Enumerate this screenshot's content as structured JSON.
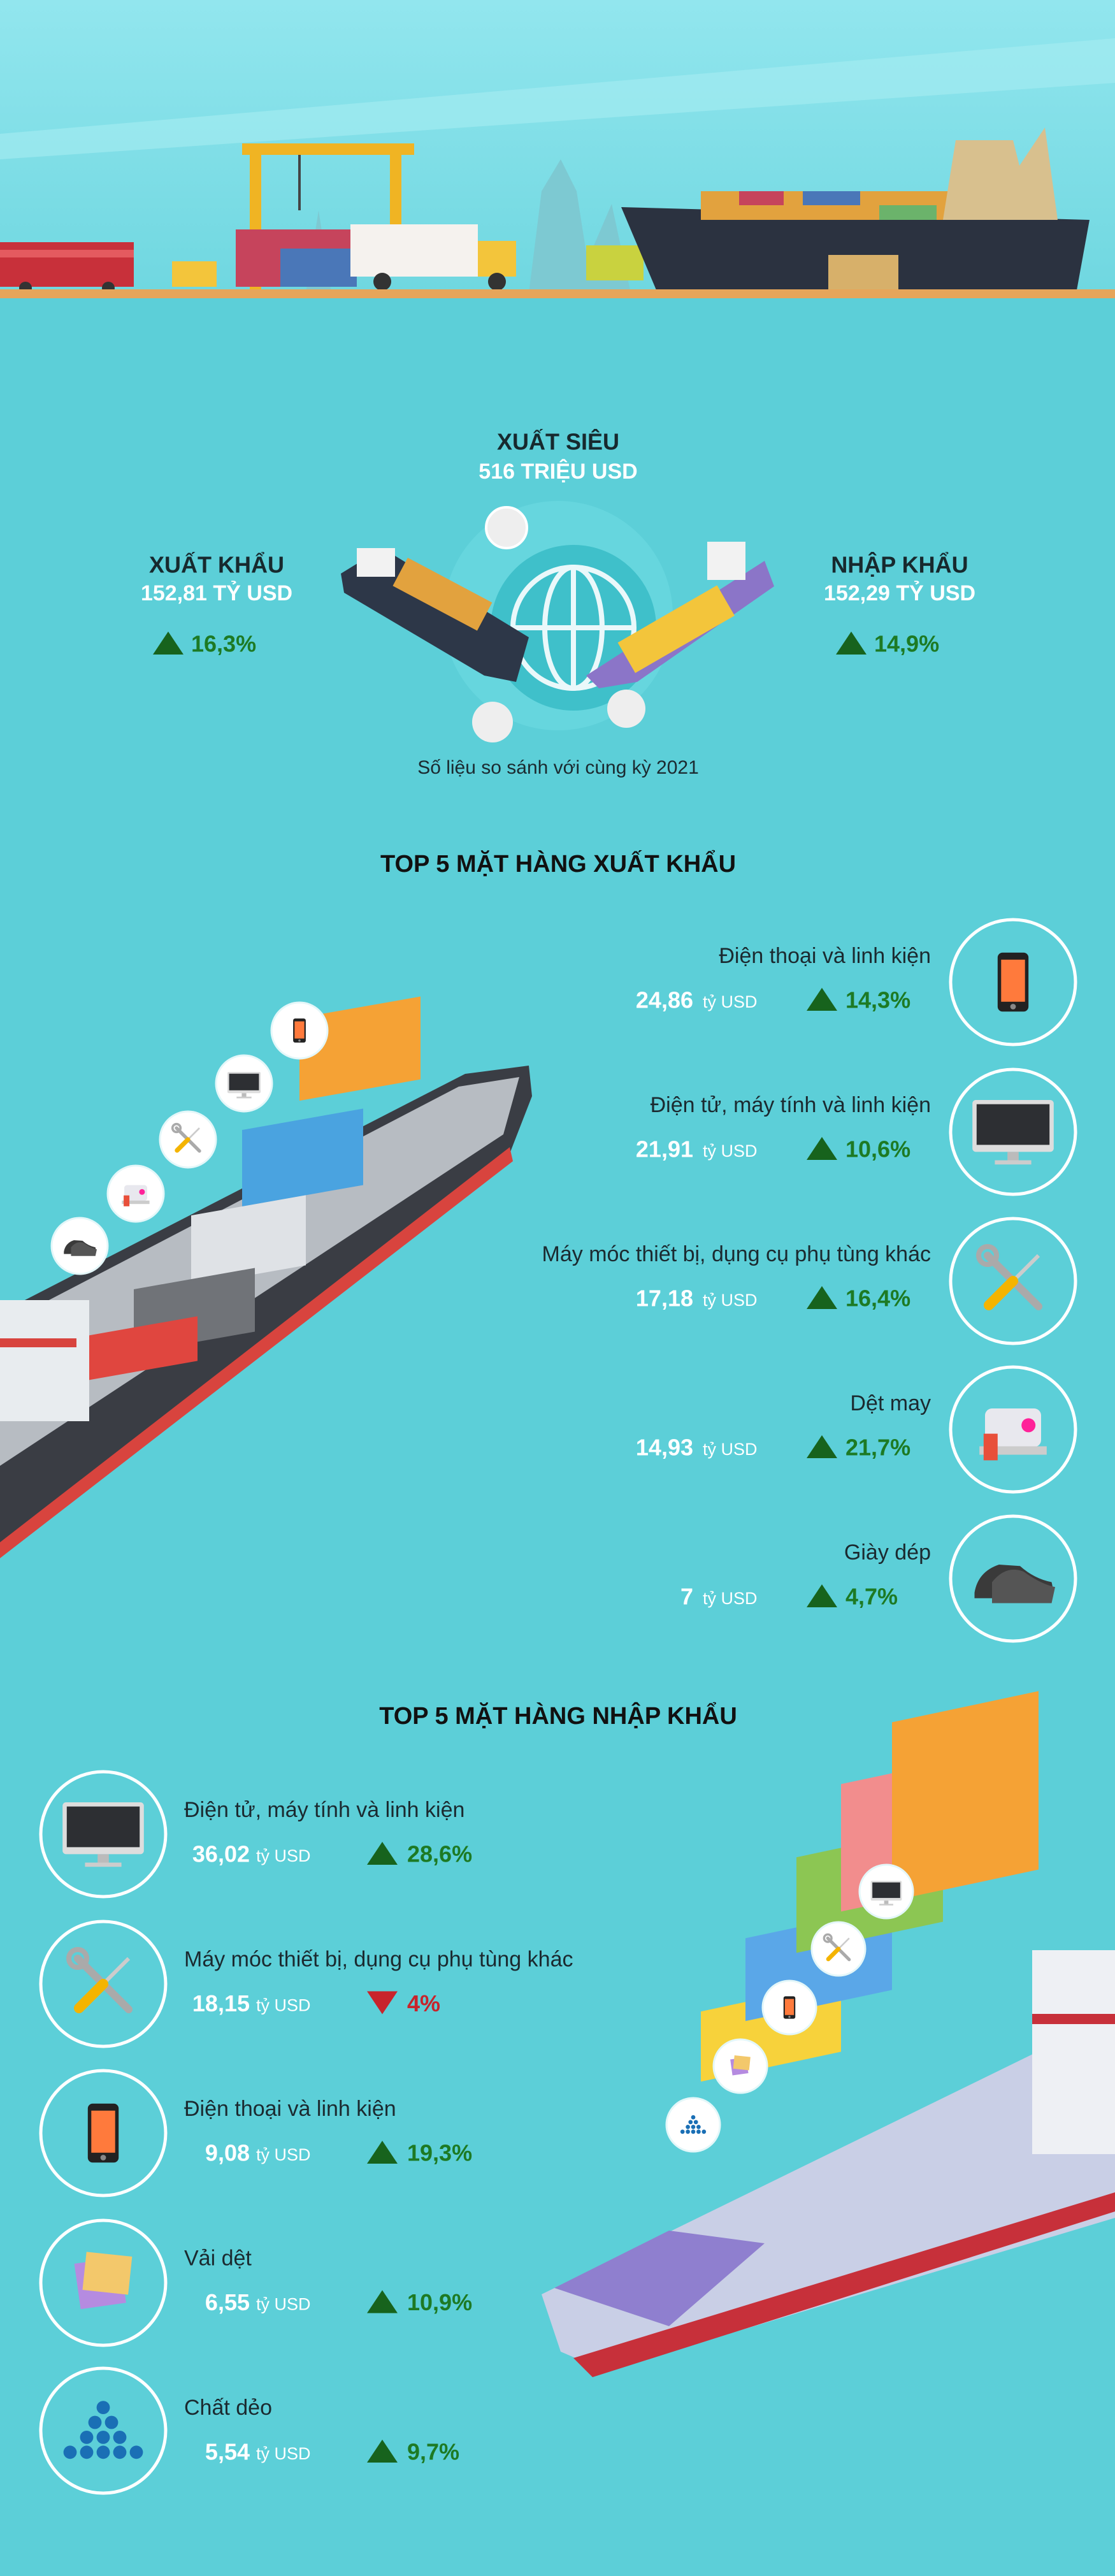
{
  "summary": {
    "surplus_title": "XUẤT SIÊU",
    "surplus_value": "516 TRIỆU USD",
    "export_title": "XUẤT KHẨU",
    "export_value": "152,81 TỶ USD",
    "export_change": "16,3%",
    "import_title": "NHẬP KHẨU",
    "import_value": "152,29 TỶ USD",
    "import_change": "14,9%",
    "note": "Số liệu so sánh với cùng kỳ 2021"
  },
  "exports": {
    "title": "TOP 5 MẶT HÀNG XUẤT KHẨU",
    "unit": "tỷ USD",
    "items": [
      {
        "name": "Điện thoại và linh kiện",
        "value": "24,86",
        "change": "14,3%",
        "direction": "up"
      },
      {
        "name": "Điện tử, máy tính và linh kiện",
        "value": "21,91",
        "change": "10,6%",
        "direction": "up"
      },
      {
        "name": "Máy móc thiết bị, dụng cụ phụ tùng khác",
        "value": "17,18",
        "change": "16,4%",
        "direction": "up"
      },
      {
        "name": "Dệt may",
        "value": "14,93",
        "change": "21,7%",
        "direction": "up"
      },
      {
        "name": "Giày dép",
        "value": "7",
        "change": "4,7%",
        "direction": "up"
      }
    ]
  },
  "imports": {
    "title": "TOP 5 MẶT HÀNG NHẬP KHẨU",
    "unit": "tỷ USD",
    "items": [
      {
        "name": "Điện tử, máy tính và linh kiện",
        "value": "36,02",
        "change": "28,6%",
        "direction": "up"
      },
      {
        "name": "Máy móc thiết bị, dụng cụ phụ tùng khác",
        "value": "18,15",
        "change": "4%",
        "direction": "down"
      },
      {
        "name": "Điện thoại và linh kiện",
        "value": "9,08",
        "change": "19,3%",
        "direction": "up"
      },
      {
        "name": "Vải dệt",
        "value": "6,55",
        "change": "10,9%",
        "direction": "up"
      },
      {
        "name": "Chất dẻo",
        "value": "5,54",
        "change": "9,7%",
        "direction": "up"
      }
    ]
  }
}
